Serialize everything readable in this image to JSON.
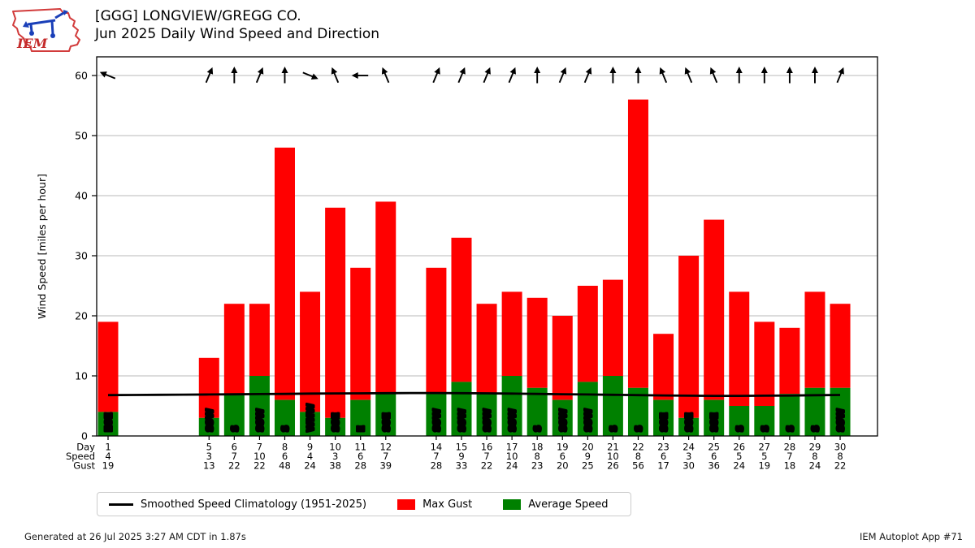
{
  "header": {
    "title_line1": "[GGG] LONGVIEW/GREGG CO.",
    "title_line2": "Jun 2025 Daily Wind Speed and Direction",
    "logo_text": "IEM"
  },
  "legend": {
    "climatology_label": "Smoothed Speed Climatology (1951-2025)",
    "max_gust_label": "Max Gust",
    "avg_speed_label": "Average Speed"
  },
  "footer": {
    "generated_text": "Generated at 26 Jul 2025 3:27 AM CDT in 1.87s",
    "app_text": "IEM Autoplot App #71"
  },
  "colors": {
    "max_gust": "#ff0000",
    "avg_speed": "#008000",
    "climatology": "#000000",
    "grid": "#b9b9b9",
    "frame": "#000000",
    "direction_label_fill": "#ffffff",
    "direction_label_outline": "#000000"
  },
  "chart_data": {
    "type": "bar",
    "title": "[GGG] LONGVIEW/GREGG CO. — Jun 2025 Daily Wind Speed and Direction",
    "ylabel": "Wind Speed [miles per hour]",
    "ylim": [
      0,
      63
    ],
    "yticks": [
      0,
      10,
      20,
      30,
      40,
      50,
      60
    ],
    "grid": "horizontal",
    "legend_position": "bottom",
    "xlabel_rows": [
      "Day",
      "Speed",
      "Gust"
    ],
    "days": [
      1,
      5,
      6,
      7,
      8,
      9,
      10,
      11,
      12,
      14,
      15,
      16,
      17,
      18,
      19,
      20,
      21,
      22,
      23,
      24,
      25,
      26,
      27,
      28,
      29,
      30
    ],
    "series": [
      {
        "name": "Average Speed",
        "values": [
          4,
          3,
          7,
          10,
          6,
          4,
          3,
          6,
          7,
          7,
          9,
          7,
          10,
          8,
          6,
          9,
          10,
          8,
          6,
          3,
          6,
          5,
          5,
          7,
          8,
          8
        ],
        "color": "#008000"
      },
      {
        "name": "Max Gust",
        "values": [
          19,
          13,
          22,
          22,
          48,
          24,
          38,
          28,
          39,
          28,
          33,
          22,
          24,
          23,
          20,
          25,
          26,
          56,
          17,
          30,
          36,
          24,
          19,
          18,
          24,
          22
        ],
        "color": "#ff0000"
      }
    ],
    "wind_direction": [
      "ESE",
      "SSW",
      "S",
      "SSW",
      "S",
      "WNW",
      "SSE",
      "E",
      "SSE",
      "SSW",
      "SSW",
      "SSW",
      "SSW",
      "S",
      "SSW",
      "SSW",
      "S",
      "S",
      "SSE",
      "SSE",
      "SSE",
      "S",
      "S",
      "S",
      "S",
      "SSW"
    ],
    "climatology": {
      "name": "Smoothed Speed Climatology (1951-2025)",
      "days": [
        1,
        2,
        3,
        4,
        5,
        6,
        7,
        8,
        9,
        10,
        11,
        12,
        13,
        14,
        15,
        16,
        17,
        18,
        19,
        20,
        21,
        22,
        23,
        24,
        25,
        26,
        27,
        28,
        29,
        30
      ],
      "values": [
        6.8,
        6.82,
        6.85,
        6.88,
        6.9,
        6.93,
        6.97,
        7.0,
        7.05,
        7.08,
        7.1,
        7.12,
        7.15,
        7.15,
        7.12,
        7.1,
        7.05,
        7.0,
        6.95,
        6.9,
        6.85,
        6.8,
        6.75,
        6.7,
        6.68,
        6.67,
        6.7,
        6.73,
        6.78,
        6.82
      ]
    }
  }
}
